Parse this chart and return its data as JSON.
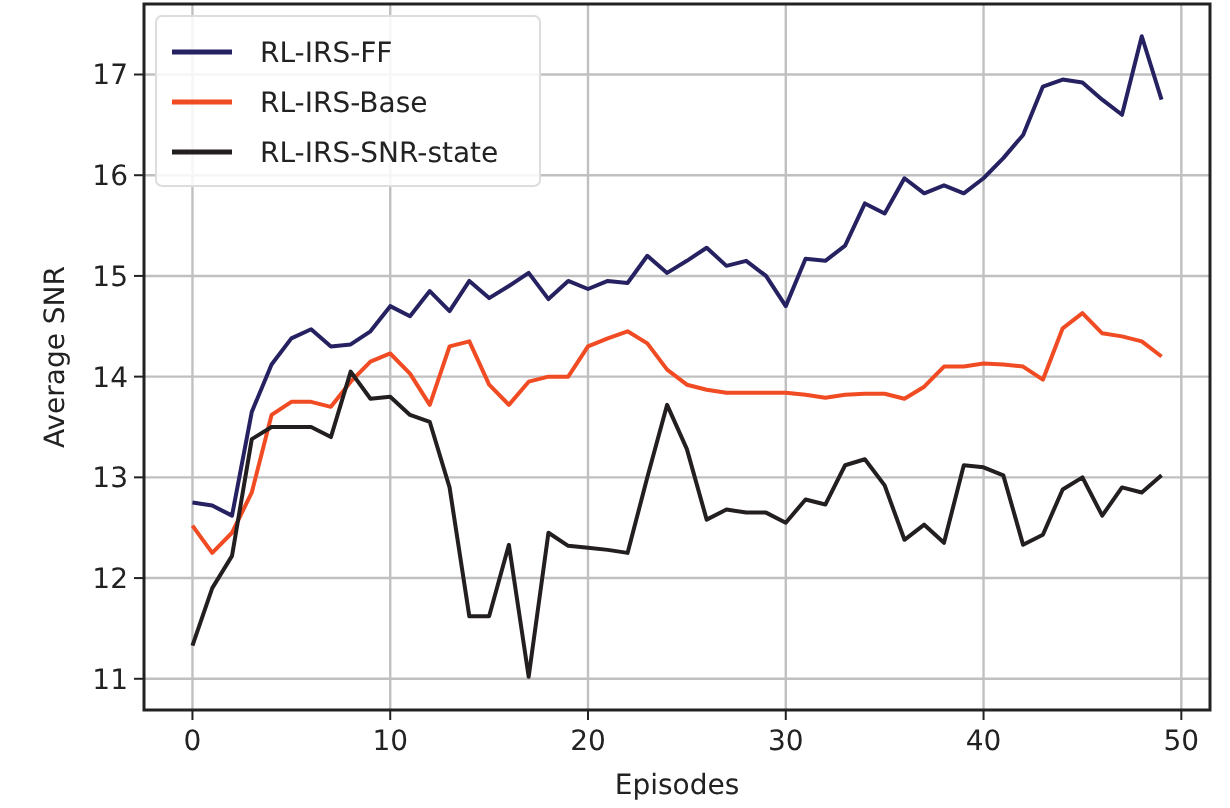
{
  "chart_data": {
    "type": "line",
    "xlabel": "Episodes",
    "ylabel": "Average SNR",
    "x": [
      0,
      1,
      2,
      3,
      4,
      5,
      6,
      7,
      8,
      9,
      10,
      11,
      12,
      13,
      14,
      15,
      16,
      17,
      18,
      19,
      20,
      21,
      22,
      23,
      24,
      25,
      26,
      27,
      28,
      29,
      30,
      31,
      32,
      33,
      34,
      35,
      36,
      37,
      38,
      39,
      40,
      41,
      42,
      43,
      44,
      45,
      46,
      47,
      48,
      49
    ],
    "series": [
      {
        "name": "RL-IRS-FF",
        "color": "#262262",
        "values": [
          12.75,
          12.72,
          12.62,
          13.65,
          14.12,
          14.38,
          14.47,
          14.3,
          14.32,
          14.45,
          14.7,
          14.6,
          14.85,
          14.65,
          14.95,
          14.78,
          14.9,
          15.03,
          14.77,
          14.95,
          14.87,
          14.95,
          14.93,
          15.2,
          15.03,
          15.15,
          15.28,
          15.1,
          15.15,
          15.0,
          14.7,
          15.17,
          15.15,
          15.3,
          15.72,
          15.62,
          15.97,
          15.82,
          15.9,
          15.82,
          15.97,
          16.17,
          16.4,
          16.88,
          16.95,
          16.92,
          16.75,
          16.6,
          17.38,
          16.75
        ]
      },
      {
        "name": "RL-IRS-Base",
        "color": "#f04b23",
        "values": [
          12.52,
          12.25,
          12.45,
          12.85,
          13.62,
          13.75,
          13.75,
          13.7,
          13.95,
          14.15,
          14.23,
          14.03,
          13.72,
          14.3,
          14.35,
          13.92,
          13.72,
          13.95,
          14.0,
          14.0,
          14.3,
          14.38,
          14.45,
          14.33,
          14.07,
          13.92,
          13.87,
          13.84,
          13.84,
          13.84,
          13.84,
          13.82,
          13.79,
          13.82,
          13.83,
          13.83,
          13.78,
          13.9,
          14.1,
          14.1,
          14.13,
          14.12,
          14.1,
          13.97,
          14.48,
          14.63,
          14.43,
          14.4,
          14.35,
          14.2
        ]
      },
      {
        "name": "RL-IRS-SNR-state",
        "color": "#231f20",
        "values": [
          11.33,
          11.9,
          12.22,
          13.38,
          13.5,
          13.5,
          13.5,
          13.4,
          14.05,
          13.78,
          13.8,
          13.62,
          13.55,
          12.9,
          11.62,
          11.62,
          12.33,
          11.02,
          12.45,
          12.32,
          12.3,
          12.28,
          12.25,
          13.0,
          13.72,
          13.28,
          12.58,
          12.68,
          12.65,
          12.65,
          12.55,
          12.78,
          12.73,
          13.12,
          13.18,
          12.92,
          12.38,
          12.53,
          12.35,
          13.12,
          13.1,
          13.02,
          12.33,
          12.43,
          12.88,
          13.0,
          12.62,
          12.9,
          12.85,
          13.02
        ]
      }
    ],
    "xlim": [
      -2.45,
      51.45
    ],
    "ylim": [
      10.69,
      17.7
    ],
    "xticks": [
      0,
      10,
      20,
      30,
      40,
      50
    ],
    "yticks": [
      11,
      12,
      13,
      14,
      15,
      16,
      17
    ],
    "grid": true,
    "legend": "top left",
    "line_style": "solid",
    "marker": "none"
  }
}
